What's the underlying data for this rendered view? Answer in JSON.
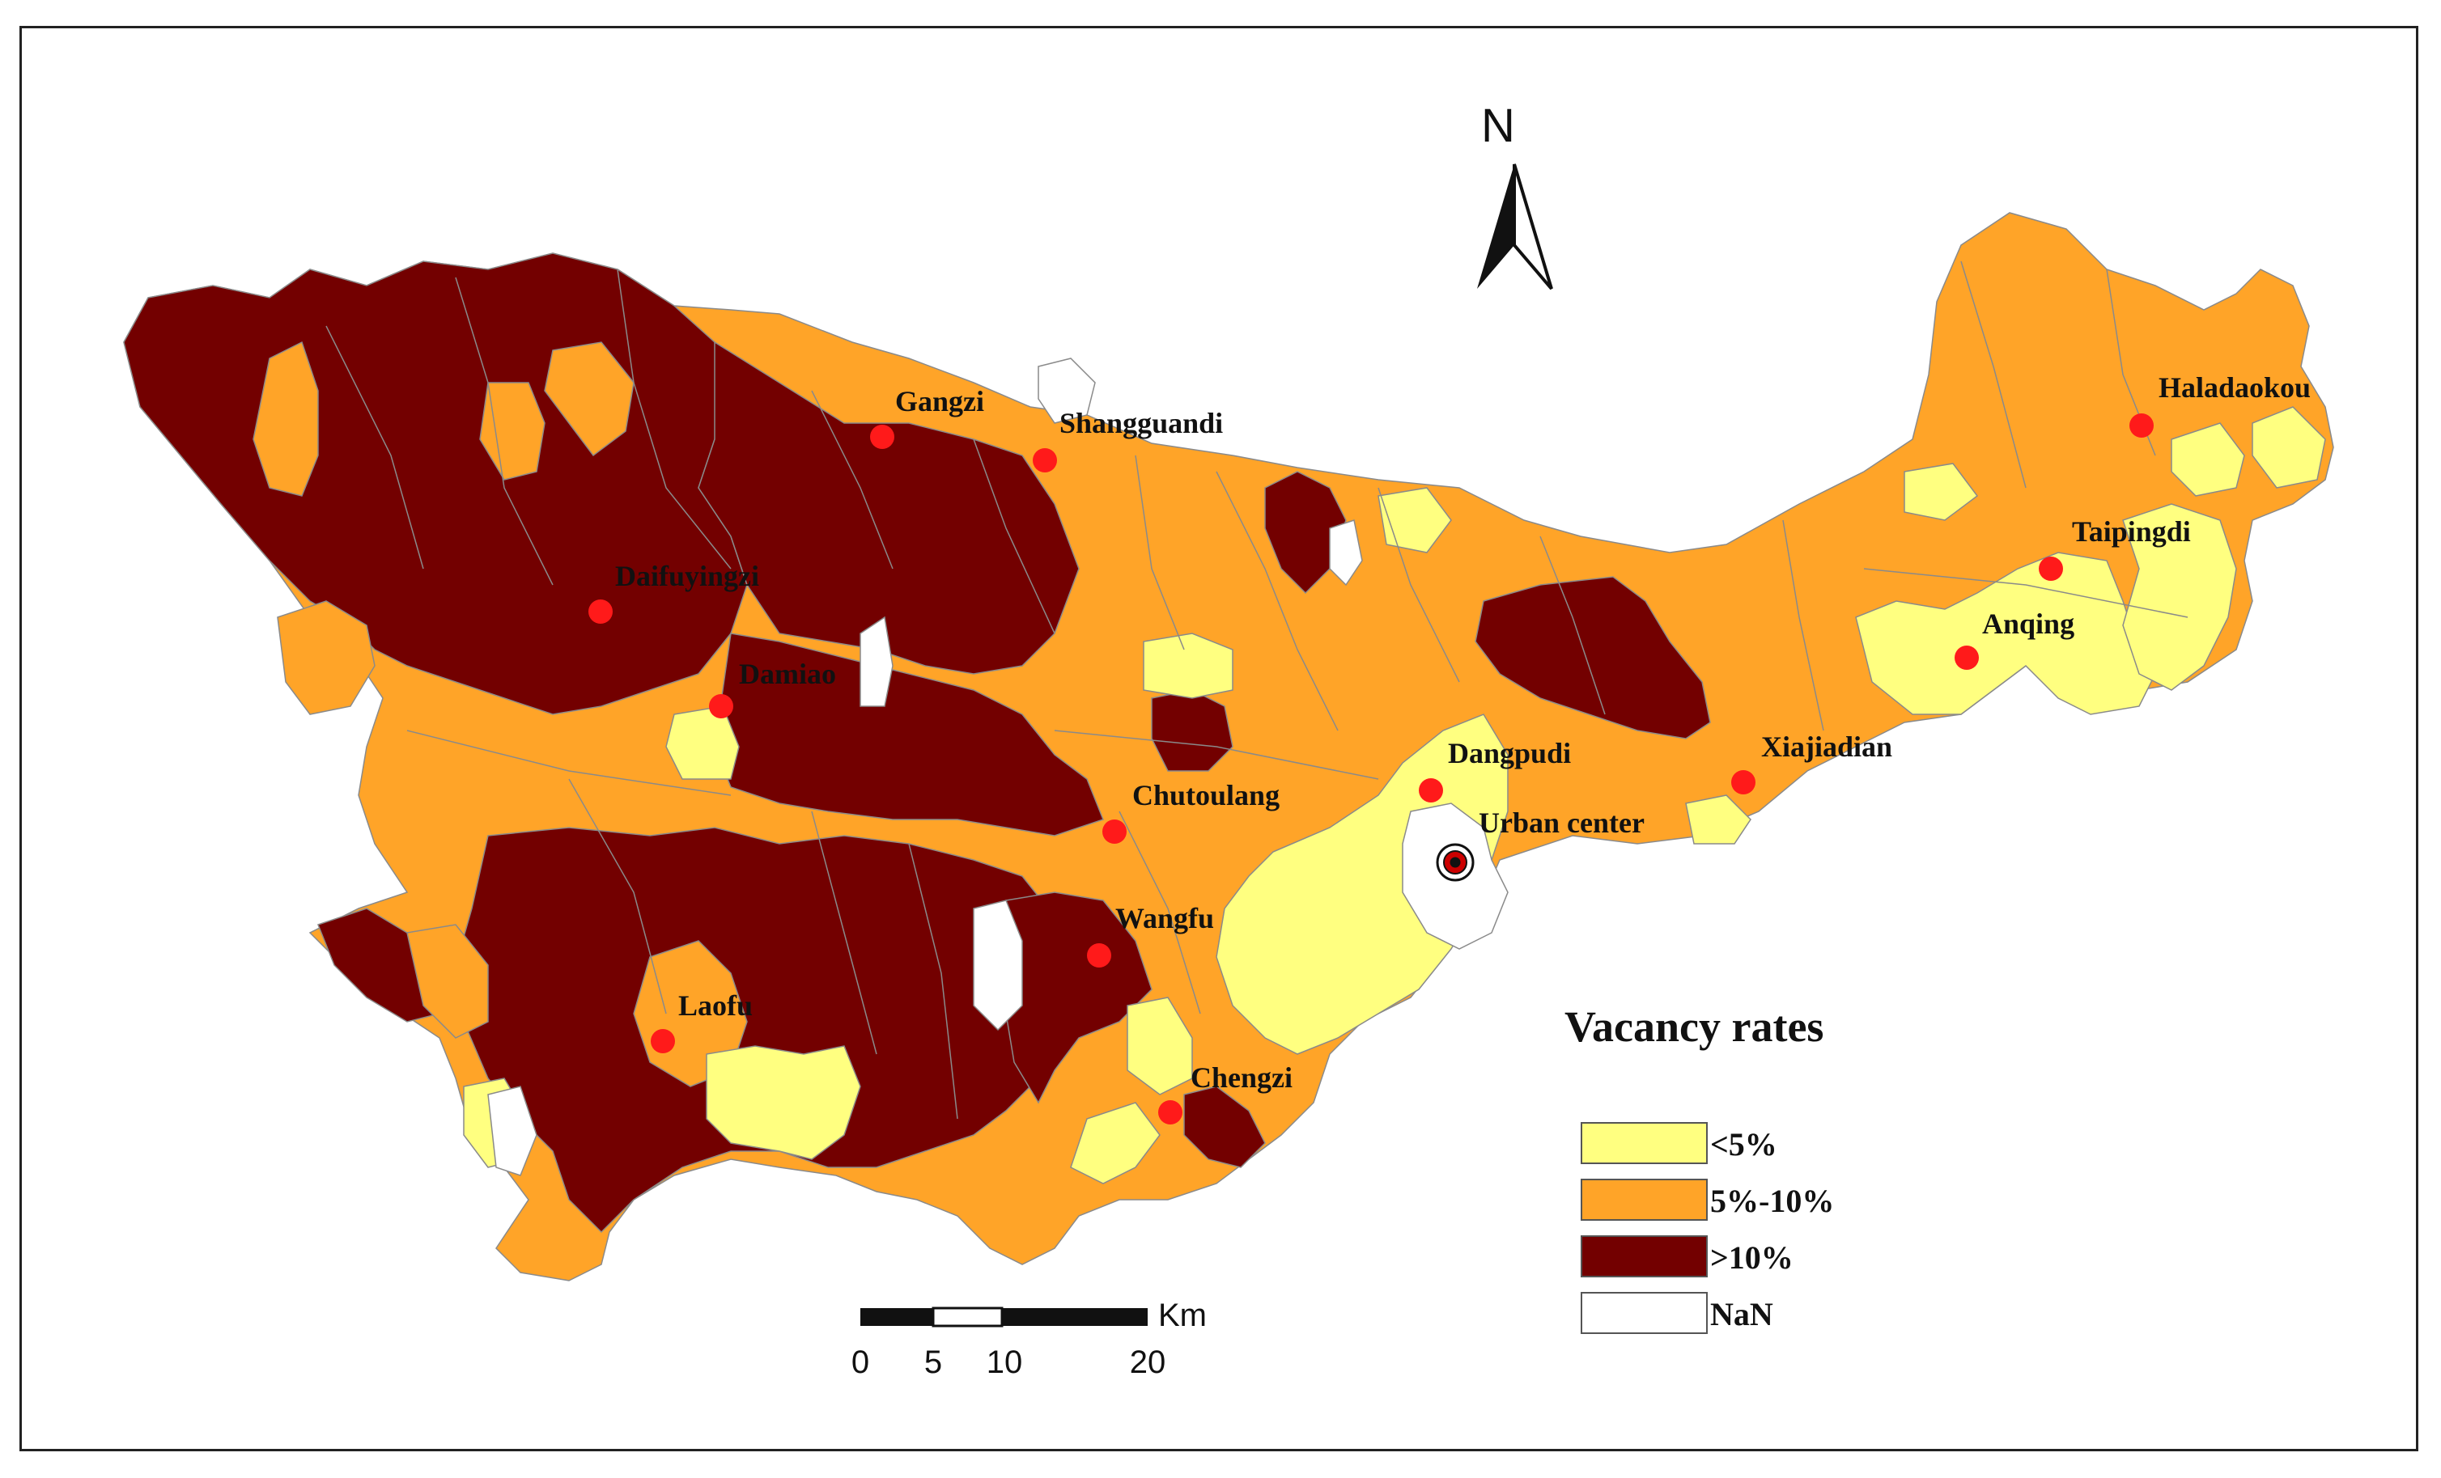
{
  "legend": {
    "title": "Vacancy rates",
    "items": [
      {
        "label": "<5%",
        "color": "#FFFF80"
      },
      {
        "label": "5%-10%",
        "color": "#FFA428"
      },
      {
        "label": ">10%",
        "color": "#730000"
      },
      {
        "label": "NaN",
        "color": "#FFFFFF"
      }
    ]
  },
  "north_arrow": {
    "label": "N"
  },
  "scale_bar": {
    "unit": "Km",
    "ticks": [
      "0",
      "5",
      "10",
      "20"
    ]
  },
  "towns": [
    {
      "name": "Gangzi"
    },
    {
      "name": "Shangguandi"
    },
    {
      "name": "Haladaokou"
    },
    {
      "name": "Daifuyingzi"
    },
    {
      "name": "Taipingdi"
    },
    {
      "name": "Anqing"
    },
    {
      "name": "Damiao"
    },
    {
      "name": "Dangpudi"
    },
    {
      "name": "Xiajiadian"
    },
    {
      "name": "Chutoulang"
    },
    {
      "name": "Urban center"
    },
    {
      "name": "Wangfu"
    },
    {
      "name": "Laofu"
    },
    {
      "name": "Chengzi"
    }
  ],
  "colors": {
    "low": "#FFFF80",
    "mid": "#FFA428",
    "high": "#730000",
    "nan": "#FFFFFF",
    "town_dot": "#FF1A1A",
    "boundary": "#8a8a8a"
  }
}
